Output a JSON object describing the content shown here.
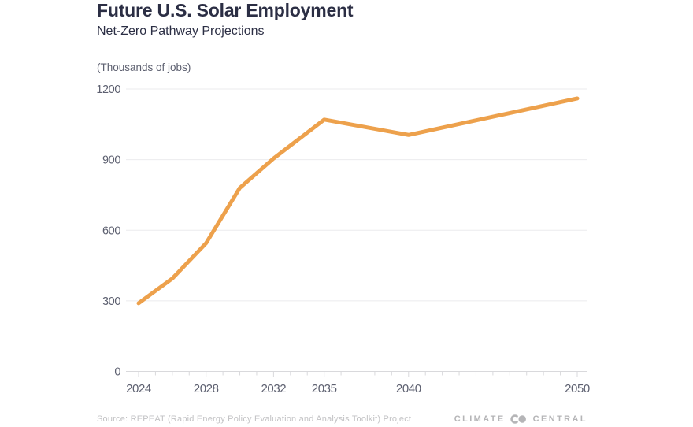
{
  "chart_data": {
    "type": "line",
    "title": "Future U.S. Solar Employment",
    "subtitle": "Net-Zero Pathway Projections",
    "unit_label": "(Thousands of jobs)",
    "x": [
      2024,
      2026,
      2028,
      2030,
      2032,
      2035,
      2040,
      2050
    ],
    "values": [
      290,
      395,
      545,
      780,
      905,
      1070,
      1005,
      1160
    ],
    "xlim": [
      2024,
      2050
    ],
    "ylim": [
      0,
      1200
    ],
    "y_ticks": [
      0,
      300,
      600,
      900,
      1200
    ],
    "x_tick_labels": [
      2024,
      2028,
      2032,
      2035,
      2040,
      2050
    ],
    "minor_x_ticks_every_year": true,
    "grid": "horizontal",
    "legend": "none",
    "line_color": "#eda14c",
    "gridline_color": "#ebebee",
    "axis_color": "#d9d9dc",
    "label_color": "#5d6070"
  },
  "footer": {
    "source": "Source: REPEAT (Rapid Energy Policy Evaluation and Analysis Toolkit) Project",
    "brand_left": "CLIMATE",
    "brand_right": "CENTRAL",
    "logo_icon": "interlocking-circles"
  }
}
